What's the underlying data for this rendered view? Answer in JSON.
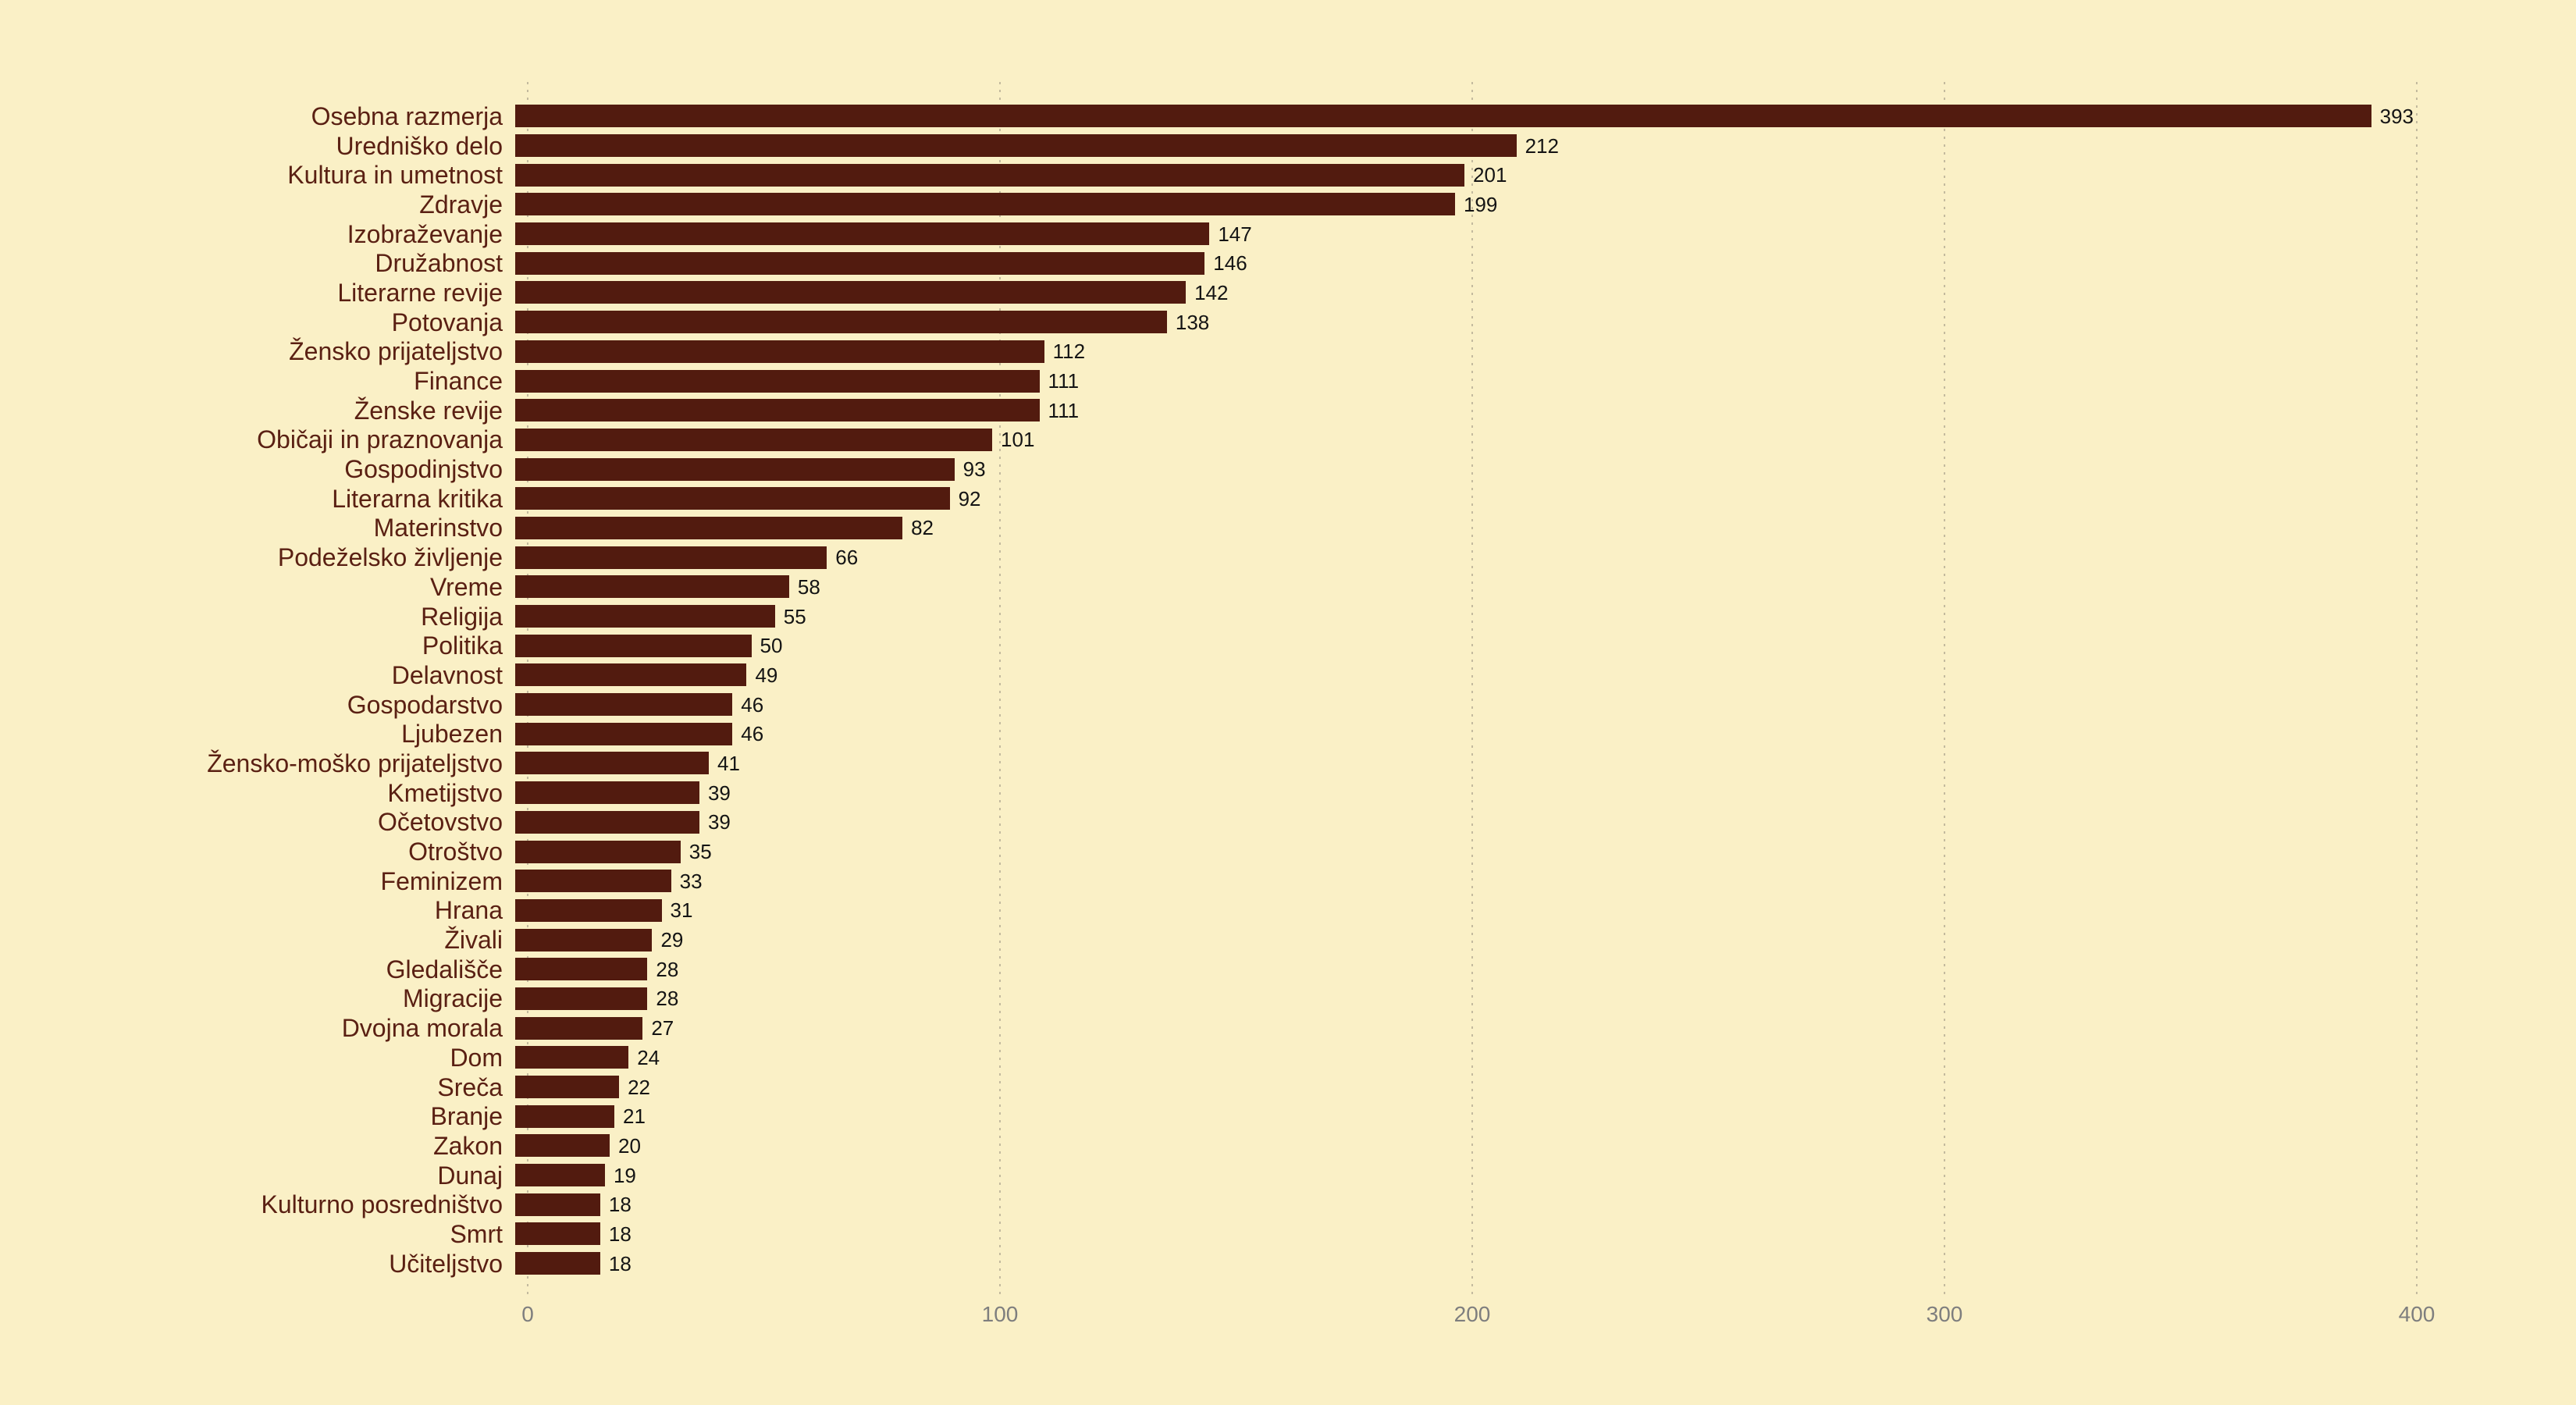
{
  "chart_data": {
    "type": "bar",
    "orientation": "horizontal",
    "title": "",
    "xlabel": "",
    "ylabel": "",
    "categories": [
      "Osebna razmerja",
      "Uredniško delo",
      "Kultura in umetnost",
      "Zdravje",
      "Izobraževanje",
      "Družabnost",
      "Literarne revije",
      "Potovanja",
      "Žensko prijateljstvo",
      "Finance",
      "Ženske revije",
      "Običaji in praznovanja",
      "Gospodinjstvo",
      "Literarna kritika",
      "Materinstvo",
      "Podeželsko življenje",
      "Vreme",
      "Religija",
      "Politika",
      "Delavnost",
      "Gospodarstvo",
      "Ljubezen",
      "Žensko-moško prijateljstvo",
      "Kmetijstvo",
      "Očetovstvo",
      "Otroštvo",
      "Feminizem",
      "Hrana",
      "Živali",
      "Gledališče",
      "Migracije",
      "Dvojna morala",
      "Dom",
      "Sreča",
      "Branje",
      "Zakon",
      "Dunaj",
      "Kulturno posredništvo",
      "Smrt",
      "Učiteljstvo"
    ],
    "values": [
      393,
      212,
      201,
      199,
      147,
      146,
      142,
      138,
      112,
      111,
      111,
      101,
      93,
      92,
      82,
      66,
      58,
      55,
      50,
      49,
      46,
      46,
      41,
      39,
      39,
      35,
      33,
      31,
      29,
      28,
      28,
      27,
      24,
      22,
      21,
      20,
      19,
      18,
      18,
      18
    ],
    "value_labels_shown": true,
    "x_ticks": [
      0,
      100,
      200,
      300,
      400
    ],
    "xlim": [
      0,
      434
    ],
    "grid": "vertical-dotted",
    "legend": "none"
  },
  "style": {
    "background": "#FAF0C6",
    "bar_color": "#521B0F",
    "category_color": "#5A2013",
    "value_color": "#141414",
    "tick_color": "#7E7E7E",
    "grid_color": "#C3BA9E"
  }
}
